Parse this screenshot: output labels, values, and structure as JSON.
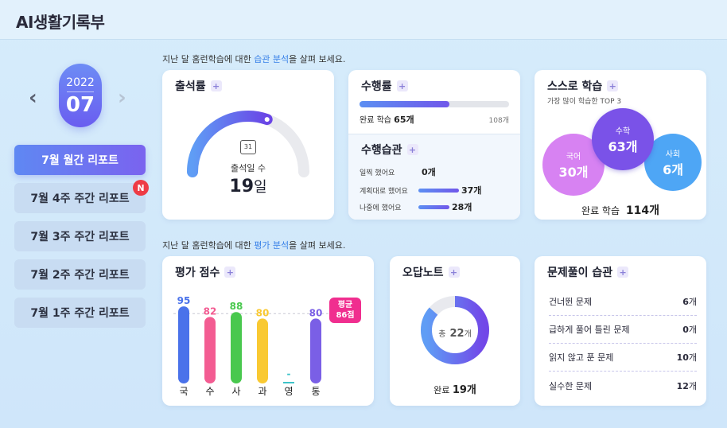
{
  "app": {
    "title": "AI생활기록부"
  },
  "sidebar": {
    "year": "2022",
    "month": "07",
    "reports": [
      {
        "label": "7월 월간 리포트",
        "active": true
      },
      {
        "label": "7월 4주 주간 리포트",
        "badge": "N"
      },
      {
        "label": "7월 3주 주간 리포트"
      },
      {
        "label": "7월 2주 주간 리포트"
      },
      {
        "label": "7월 1주 주간 리포트"
      }
    ]
  },
  "sections": {
    "habit": {
      "prefix": "지난 달 홈런학습에 대한 ",
      "highlight": "습관 분석",
      "suffix": "을 살펴 보세요."
    },
    "eval": {
      "prefix": "지난 달 홈런학습에 대한 ",
      "highlight": "평가 분석",
      "suffix": "을 살펴 보세요."
    }
  },
  "attendance": {
    "title": "출석률",
    "label": "출석일 수",
    "value": "19",
    "unit": "일",
    "calendar_icon_text": "31",
    "progress": 0.61
  },
  "performance": {
    "title": "수행률",
    "done_label": "완료 학습",
    "done_value": "65개",
    "total": "108개",
    "progress": 0.6
  },
  "performance_habit": {
    "title": "수행습관",
    "rows": [
      {
        "label": "일찍 했어요",
        "value": "0개",
        "ratio": 0
      },
      {
        "label": "계획대로 했어요",
        "value": "37개",
        "ratio": 0.57
      },
      {
        "label": "나중에 했어요",
        "value": "28개",
        "ratio": 0.43
      }
    ]
  },
  "self_study": {
    "title": "스스로 학습",
    "subtitle": "가장 많이 학습한 TOP 3",
    "bubbles": [
      {
        "subject": "국어",
        "value": "30개",
        "color": "#d782f2"
      },
      {
        "subject": "수학",
        "value": "63개",
        "color": "#7a52e8"
      },
      {
        "subject": "사회",
        "value": "6개",
        "color": "#4ea6f5"
      }
    ],
    "done_label": "완료 학습",
    "done_value": "114개"
  },
  "eval_score": {
    "title": "평가 점수",
    "avg_label": "평균",
    "avg_value": "86점",
    "avg": 86,
    "bars": [
      {
        "subject": "국",
        "value": 95,
        "color": "#4a72ea"
      },
      {
        "subject": "수",
        "value": 82,
        "color": "#f35c92"
      },
      {
        "subject": "사",
        "value": 88,
        "color": "#49c84e"
      },
      {
        "subject": "과",
        "value": 80,
        "color": "#f9c932"
      },
      {
        "subject": "영",
        "value": null,
        "empty_label": "-",
        "color": "#3ec3c9"
      },
      {
        "subject": "통",
        "value": 80,
        "color": "#7a5fe6"
      }
    ]
  },
  "wrong_note": {
    "title": "오답노트",
    "total_prefix": "총",
    "total_value": "22",
    "total_unit": "개",
    "done_label": "완료",
    "done_value": "19개",
    "progress": 0.864
  },
  "solving_habit": {
    "title": "문제풀이 습관",
    "rows": [
      {
        "label": "건너뛴 문제",
        "value": "6",
        "unit": "개"
      },
      {
        "label": "급하게 풀어 틀린 문제",
        "value": "0",
        "unit": "개"
      },
      {
        "label": "읽지 않고 푼 문제",
        "value": "10",
        "unit": "개"
      },
      {
        "label": "실수한 문제",
        "value": "12",
        "unit": "개"
      }
    ]
  },
  "icons": {
    "prev": "chevron-left-icon",
    "next": "chevron-right-icon",
    "plus": "plus-icon",
    "calendar": "calendar-icon"
  }
}
